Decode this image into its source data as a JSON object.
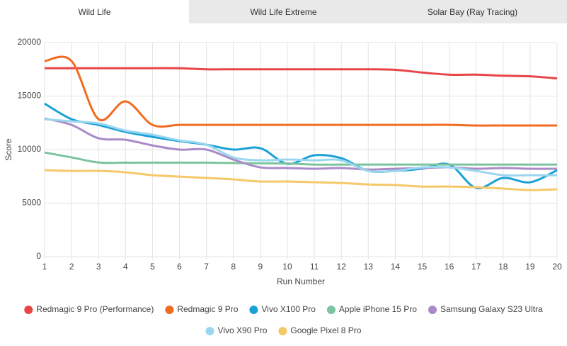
{
  "tabs": [
    "Wild Life",
    "Wild Life Extreme",
    "Solar Bay (Ray Tracing)"
  ],
  "chart_data": {
    "type": "line",
    "x_label": "Run Number",
    "y_label": "Score",
    "x": [
      1,
      2,
      3,
      4,
      5,
      6,
      7,
      8,
      9,
      10,
      11,
      12,
      13,
      14,
      15,
      16,
      17,
      18,
      19,
      20
    ],
    "xlim": [
      1,
      20
    ],
    "xticks": [
      1,
      2,
      3,
      4,
      5,
      6,
      7,
      8,
      9,
      10,
      11,
      12,
      13,
      14,
      15,
      16,
      17,
      18,
      19,
      20
    ],
    "ylim": [
      0,
      20000
    ],
    "yticks": [
      0,
      5000,
      10000,
      15000,
      20000
    ],
    "grid": true,
    "series": [
      {
        "name": "Redmagic 9 Pro (Performance)",
        "color": "#e84549",
        "values": [
          17600,
          17600,
          17600,
          17600,
          17600,
          17600,
          17500,
          17500,
          17500,
          17500,
          17500,
          17500,
          17500,
          17450,
          17200,
          17000,
          17000,
          16900,
          16850,
          16650
        ]
      },
      {
        "name": "Redmagic 9 Pro",
        "color": "#f26b21",
        "values": [
          18270,
          18270,
          12840,
          14500,
          12310,
          12310,
          12310,
          12310,
          12310,
          12310,
          12310,
          12310,
          12310,
          12310,
          12310,
          12310,
          12250,
          12250,
          12250,
          12250
        ]
      },
      {
        "name": "Vivo X100 Pro",
        "color": "#1ba1d8",
        "values": [
          14300,
          12840,
          12300,
          11650,
          11190,
          10790,
          10460,
          10000,
          10130,
          8670,
          9470,
          9200,
          8010,
          8010,
          8210,
          8610,
          6420,
          7350,
          6950,
          8080
        ]
      },
      {
        "name": "Apple iPhone 15 Pro",
        "color": "#7cc4a0",
        "values": [
          9730,
          9270,
          8800,
          8780,
          8780,
          8780,
          8780,
          8750,
          8720,
          8700,
          8600,
          8600,
          8600,
          8600,
          8600,
          8600,
          8600,
          8600,
          8600,
          8600
        ]
      },
      {
        "name": "Samsung Galaxy S23 Ultra",
        "color": "#a98bc7",
        "values": [
          12910,
          12310,
          11060,
          10920,
          10390,
          10000,
          10000,
          9070,
          8340,
          8280,
          8210,
          8280,
          8140,
          8210,
          8280,
          8340,
          8210,
          8280,
          8210,
          8210
        ]
      },
      {
        "name": "Vivo X90 Pro",
        "color": "#9ad6ee",
        "values": [
          12840,
          12640,
          12450,
          11780,
          11390,
          10860,
          10460,
          9270,
          9000,
          9070,
          9000,
          9000,
          8010,
          8010,
          8340,
          8340,
          8010,
          7610,
          7610,
          7610
        ]
      },
      {
        "name": "Google Pixel 8 Pro",
        "color": "#f5c869",
        "values": [
          8080,
          8010,
          8010,
          7880,
          7610,
          7480,
          7350,
          7220,
          7020,
          7020,
          6950,
          6880,
          6750,
          6690,
          6550,
          6550,
          6490,
          6360,
          6220,
          6290
        ]
      }
    ]
  }
}
